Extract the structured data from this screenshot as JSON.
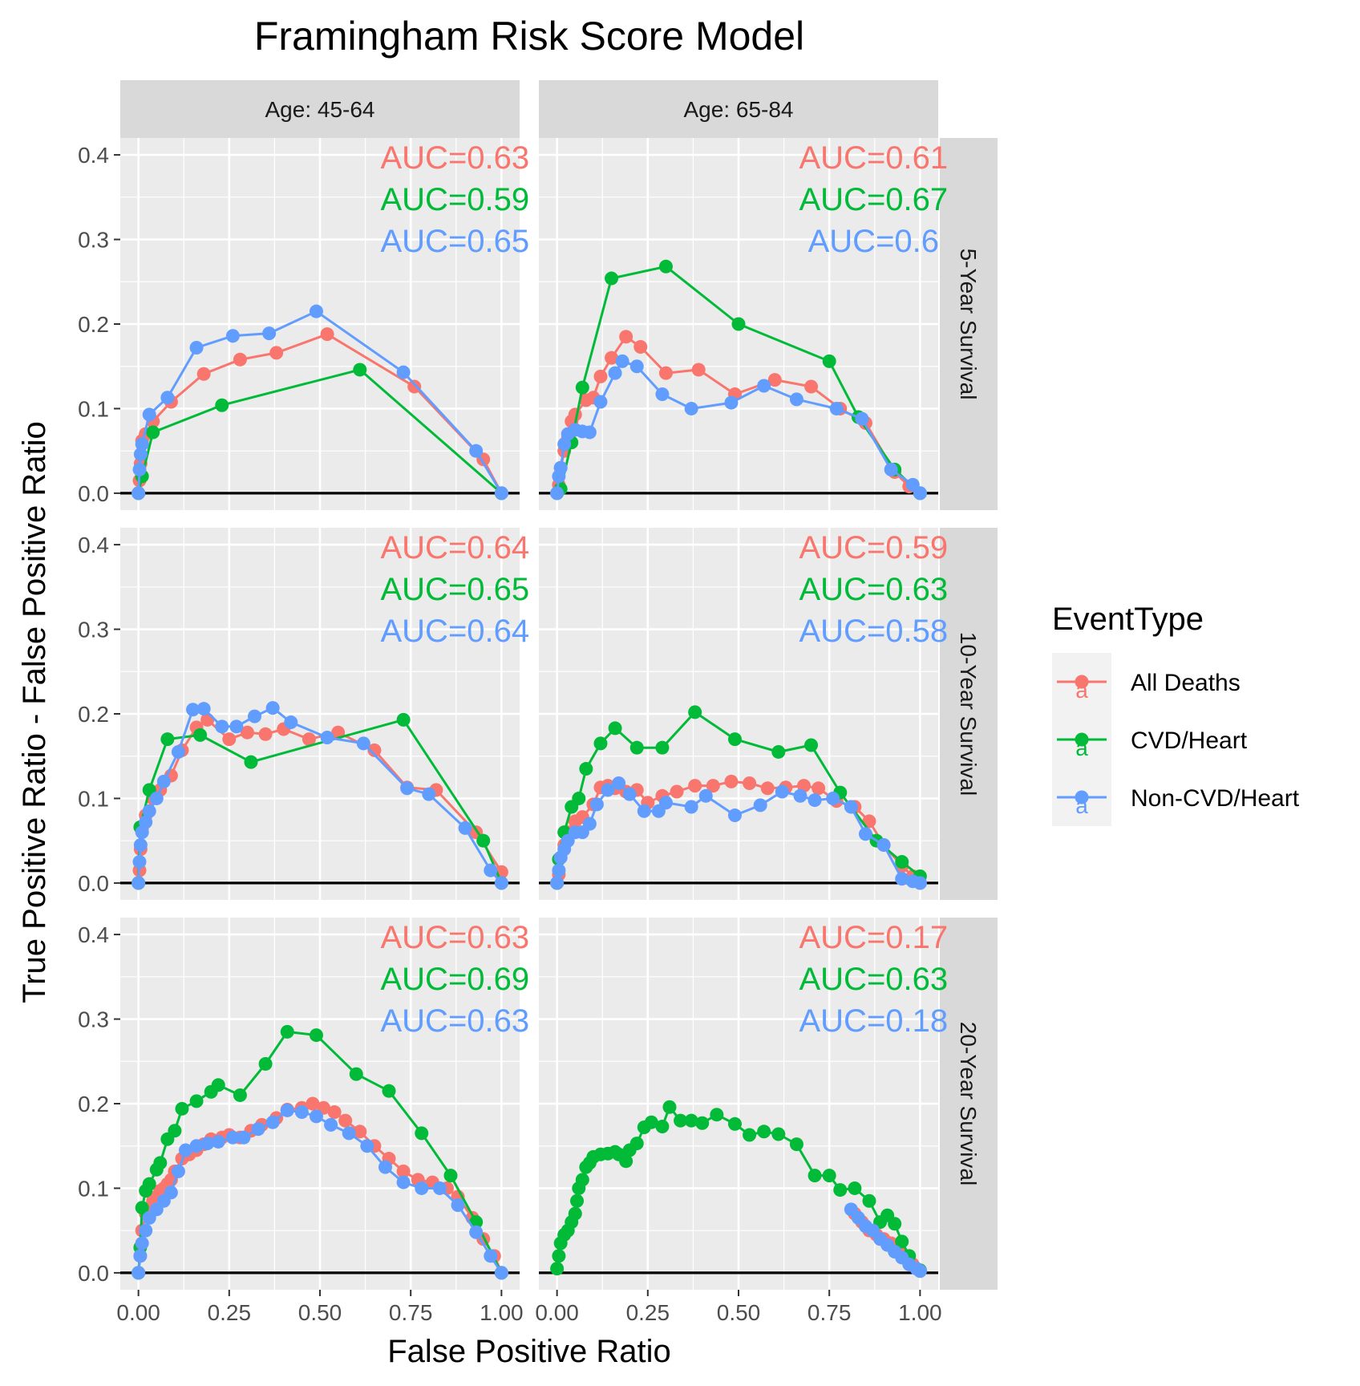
{
  "chart_data": {
    "type": "line",
    "title": "Framingham Risk Score Model",
    "xlabel": "False Positive Ratio",
    "ylabel": "True Positive Ratio - False Positive Ratio",
    "xlim": [
      -0.05,
      1.05
    ],
    "ylim": [
      -0.02,
      0.42
    ],
    "xticks": [
      "0.00",
      "0.25",
      "0.50",
      "0.75",
      "1.00"
    ],
    "xtick_values": [
      0,
      0.25,
      0.5,
      0.75,
      1.0
    ],
    "yticks": [
      "0.0",
      "0.1",
      "0.2",
      "0.3",
      "0.4"
    ],
    "ytick_values": [
      0,
      0.1,
      0.2,
      0.3,
      0.4
    ],
    "grid": true,
    "legend": {
      "title": "EventType",
      "placement": "right",
      "entries": [
        "All Deaths",
        "CVD/Heart",
        "Non-CVD/Heart"
      ],
      "glyph": "a"
    },
    "colors": {
      "All Deaths": "#F8766D",
      "CVD/Heart": "#00BA38",
      "Non-CVD/Heart": "#619CFF",
      "panel_bg": "#EBEBEB",
      "strip_bg": "#D9D9D9",
      "grid": "#FFFFFF",
      "zero_line": "#000000"
    },
    "col_strips": [
      "Age: 45-64",
      "Age: 65-84"
    ],
    "row_strips": [
      "5-Year Survival",
      "10-Year Survival",
      "20-Year Survival"
    ],
    "panels": [
      {
        "row": 0,
        "col": 0,
        "auc": [
          "AUC=0.63",
          "AUC=0.59",
          "AUC=0.65"
        ],
        "series": [
          {
            "name": "All Deaths",
            "x": [
              0,
              0.003,
              0.006,
              0.01,
              0.02,
              0.04,
              0.09,
              0.18,
              0.28,
              0.38,
              0.52,
              0.76,
              0.95,
              1.0
            ],
            "y": [
              0,
              0.015,
              0.035,
              0.062,
              0.07,
              0.085,
              0.108,
              0.141,
              0.158,
              0.166,
              0.188,
              0.126,
              0.04,
              0
            ]
          },
          {
            "name": "CVD/Heart",
            "x": [
              0,
              0.01,
              0.04,
              0.23,
              0.61,
              1.0
            ],
            "y": [
              0,
              0.02,
              0.072,
              0.104,
              0.146,
              0
            ]
          },
          {
            "name": "Non-CVD/Heart",
            "x": [
              0,
              0.003,
              0.006,
              0.01,
              0.03,
              0.08,
              0.16,
              0.26,
              0.36,
              0.49,
              0.73,
              0.93,
              1.0
            ],
            "y": [
              0,
              0.028,
              0.046,
              0.058,
              0.093,
              0.113,
              0.172,
              0.186,
              0.189,
              0.215,
              0.143,
              0.05,
              0
            ]
          }
        ]
      },
      {
        "row": 0,
        "col": 1,
        "auc": [
          "AUC=0.61",
          "AUC=0.67",
          "AUC=0.6"
        ],
        "series": [
          {
            "name": "All Deaths",
            "x": [
              0,
              0.005,
              0.01,
              0.02,
              0.03,
              0.04,
              0.05,
              0.08,
              0.1,
              0.12,
              0.15,
              0.19,
              0.23,
              0.3,
              0.39,
              0.49,
              0.6,
              0.7,
              0.78,
              0.85,
              0.93,
              0.97,
              1.0
            ],
            "y": [
              0,
              0.01,
              0.03,
              0.05,
              0.065,
              0.085,
              0.093,
              0.11,
              0.113,
              0.138,
              0.16,
              0.185,
              0.173,
              0.142,
              0.146,
              0.117,
              0.134,
              0.126,
              0.1,
              0.083,
              0.025,
              0.008,
              0
            ]
          },
          {
            "name": "CVD/Heart",
            "x": [
              0,
              0.01,
              0.04,
              0.07,
              0.15,
              0.3,
              0.5,
              0.75,
              0.83,
              0.93,
              1.0
            ],
            "y": [
              0,
              0.005,
              0.06,
              0.125,
              0.254,
              0.268,
              0.2,
              0.156,
              0.09,
              0.028,
              0
            ]
          },
          {
            "name": "Non-CVD/Heart",
            "x": [
              0,
              0.005,
              0.01,
              0.02,
              0.03,
              0.05,
              0.07,
              0.09,
              0.12,
              0.16,
              0.18,
              0.22,
              0.29,
              0.37,
              0.48,
              0.57,
              0.66,
              0.77,
              0.84,
              0.92,
              0.98,
              1.0
            ],
            "y": [
              0,
              0.02,
              0.03,
              0.058,
              0.07,
              0.075,
              0.073,
              0.072,
              0.108,
              0.142,
              0.156,
              0.15,
              0.117,
              0.1,
              0.107,
              0.127,
              0.111,
              0.1,
              0.088,
              0.028,
              0.01,
              0
            ]
          }
        ]
      },
      {
        "row": 1,
        "col": 0,
        "auc": [
          "AUC=0.64",
          "AUC=0.65",
          "AUC=0.64"
        ],
        "series": [
          {
            "name": "All Deaths",
            "x": [
              0,
              0.003,
              0.006,
              0.01,
              0.02,
              0.04,
              0.06,
              0.09,
              0.12,
              0.16,
              0.19,
              0.25,
              0.3,
              0.35,
              0.4,
              0.47,
              0.55,
              0.65,
              0.74,
              0.82,
              0.93,
              1.0
            ],
            "y": [
              0,
              0.015,
              0.04,
              0.065,
              0.08,
              0.1,
              0.11,
              0.127,
              0.157,
              0.184,
              0.193,
              0.17,
              0.178,
              0.176,
              0.182,
              0.17,
              0.178,
              0.157,
              0.113,
              0.11,
              0.06,
              0.013
            ]
          },
          {
            "name": "CVD/Heart",
            "x": [
              0,
              0.005,
              0.03,
              0.08,
              0.17,
              0.31,
              0.73,
              0.95,
              1.0
            ],
            "y": [
              0,
              0.066,
              0.11,
              0.17,
              0.175,
              0.143,
              0.193,
              0.05,
              0
            ]
          },
          {
            "name": "Non-CVD/Heart",
            "x": [
              0,
              0.003,
              0.006,
              0.01,
              0.02,
              0.03,
              0.05,
              0.07,
              0.11,
              0.15,
              0.18,
              0.23,
              0.27,
              0.32,
              0.37,
              0.42,
              0.52,
              0.62,
              0.74,
              0.8,
              0.9,
              0.97,
              1.0
            ],
            "y": [
              0,
              0.025,
              0.045,
              0.06,
              0.072,
              0.085,
              0.1,
              0.12,
              0.155,
              0.205,
              0.206,
              0.185,
              0.185,
              0.197,
              0.207,
              0.19,
              0.172,
              0.165,
              0.112,
              0.105,
              0.065,
              0.015,
              0
            ]
          }
        ]
      },
      {
        "row": 1,
        "col": 1,
        "auc": [
          "AUC=0.59",
          "AUC=0.63",
          "AUC=0.58"
        ],
        "series": [
          {
            "name": "All Deaths",
            "x": [
              0,
              0.005,
              0.01,
              0.02,
              0.03,
              0.05,
              0.07,
              0.1,
              0.12,
              0.14,
              0.16,
              0.19,
              0.22,
              0.25,
              0.29,
              0.33,
              0.38,
              0.43,
              0.48,
              0.53,
              0.58,
              0.63,
              0.68,
              0.72,
              0.77,
              0.82,
              0.86,
              0.9,
              0.95,
              0.98,
              1.0
            ],
            "y": [
              0,
              0.01,
              0.03,
              0.045,
              0.06,
              0.073,
              0.078,
              0.093,
              0.113,
              0.115,
              0.112,
              0.108,
              0.11,
              0.095,
              0.103,
              0.108,
              0.115,
              0.115,
              0.12,
              0.118,
              0.112,
              0.113,
              0.115,
              0.112,
              0.097,
              0.09,
              0.073,
              0.045,
              0.02,
              0.008,
              0
            ]
          },
          {
            "name": "CVD/Heart",
            "x": [
              0,
              0.005,
              0.02,
              0.04,
              0.06,
              0.08,
              0.12,
              0.16,
              0.22,
              0.29,
              0.38,
              0.49,
              0.61,
              0.7,
              0.78,
              0.88,
              0.95,
              1.0
            ],
            "y": [
              0,
              0.028,
              0.06,
              0.09,
              0.1,
              0.135,
              0.165,
              0.183,
              0.16,
              0.16,
              0.202,
              0.17,
              0.155,
              0.163,
              0.107,
              0.05,
              0.025,
              0.008
            ]
          },
          {
            "name": "Non-CVD/Heart",
            "x": [
              0,
              0.005,
              0.01,
              0.02,
              0.03,
              0.05,
              0.07,
              0.09,
              0.11,
              0.14,
              0.17,
              0.2,
              0.24,
              0.28,
              0.3,
              0.37,
              0.41,
              0.49,
              0.56,
              0.62,
              0.67,
              0.71,
              0.76,
              0.81,
              0.85,
              0.9,
              0.95,
              0.98,
              1.0
            ],
            "y": [
              0,
              0.015,
              0.03,
              0.04,
              0.05,
              0.06,
              0.06,
              0.07,
              0.093,
              0.11,
              0.118,
              0.105,
              0.085,
              0.085,
              0.095,
              0.09,
              0.103,
              0.08,
              0.092,
              0.108,
              0.103,
              0.098,
              0.1,
              0.09,
              0.058,
              0.045,
              0.005,
              0.002,
              0
            ]
          }
        ]
      },
      {
        "row": 2,
        "col": 0,
        "auc": [
          "AUC=0.63",
          "AUC=0.69",
          "AUC=0.63"
        ],
        "series": [
          {
            "name": "All Deaths",
            "x": [
              0,
              0.005,
              0.01,
              0.02,
              0.03,
              0.04,
              0.05,
              0.06,
              0.07,
              0.08,
              0.09,
              0.1,
              0.12,
              0.14,
              0.16,
              0.18,
              0.2,
              0.23,
              0.25,
              0.28,
              0.31,
              0.34,
              0.38,
              0.41,
              0.45,
              0.48,
              0.51,
              0.54,
              0.57,
              0.61,
              0.65,
              0.69,
              0.73,
              0.77,
              0.81,
              0.85,
              0.88,
              0.92,
              0.95,
              0.98,
              1.0
            ],
            "y": [
              0,
              0.02,
              0.05,
              0.07,
              0.075,
              0.085,
              0.09,
              0.097,
              0.1,
              0.105,
              0.11,
              0.12,
              0.135,
              0.14,
              0.145,
              0.152,
              0.158,
              0.16,
              0.163,
              0.16,
              0.168,
              0.175,
              0.183,
              0.193,
              0.195,
              0.2,
              0.195,
              0.19,
              0.18,
              0.167,
              0.15,
              0.135,
              0.12,
              0.11,
              0.107,
              0.1,
              0.09,
              0.065,
              0.04,
              0.02,
              0
            ]
          },
          {
            "name": "CVD/Heart",
            "x": [
              0,
              0.005,
              0.01,
              0.02,
              0.03,
              0.05,
              0.06,
              0.08,
              0.1,
              0.12,
              0.16,
              0.2,
              0.22,
              0.28,
              0.35,
              0.41,
              0.49,
              0.6,
              0.69,
              0.78,
              0.86,
              0.93,
              1.0
            ],
            "y": [
              0,
              0.03,
              0.077,
              0.097,
              0.105,
              0.122,
              0.13,
              0.158,
              0.168,
              0.194,
              0.203,
              0.214,
              0.222,
              0.21,
              0.247,
              0.285,
              0.281,
              0.235,
              0.215,
              0.165,
              0.115,
              0.06,
              0
            ]
          },
          {
            "name": "Non-CVD/Heart",
            "x": [
              0,
              0.005,
              0.01,
              0.02,
              0.03,
              0.05,
              0.07,
              0.09,
              0.11,
              0.13,
              0.16,
              0.19,
              0.22,
              0.26,
              0.29,
              0.33,
              0.37,
              0.41,
              0.45,
              0.49,
              0.53,
              0.58,
              0.63,
              0.68,
              0.73,
              0.78,
              0.83,
              0.88,
              0.93,
              0.97,
              1.0
            ],
            "y": [
              0,
              0.02,
              0.035,
              0.05,
              0.065,
              0.075,
              0.085,
              0.095,
              0.12,
              0.145,
              0.15,
              0.153,
              0.155,
              0.16,
              0.16,
              0.17,
              0.178,
              0.192,
              0.19,
              0.185,
              0.175,
              0.165,
              0.15,
              0.125,
              0.107,
              0.1,
              0.1,
              0.08,
              0.048,
              0.02,
              0
            ]
          }
        ]
      },
      {
        "row": 2,
        "col": 1,
        "auc": [
          "AUC=0.17",
          "AUC=0.63",
          "AUC=0.18"
        ],
        "series": [
          {
            "name": "All Deaths",
            "x": [
              0.82,
              0.84,
              0.86,
              0.88,
              0.9,
              0.92,
              0.94,
              0.96,
              0.98,
              1.0
            ],
            "y": [
              0.07,
              0.06,
              0.05,
              0.045,
              0.04,
              0.035,
              0.025,
              0.02,
              0.01,
              0.003
            ]
          },
          {
            "name": "CVD/Heart",
            "x": [
              0,
              0.005,
              0.01,
              0.02,
              0.03,
              0.04,
              0.05,
              0.055,
              0.06,
              0.07,
              0.08,
              0.09,
              0.1,
              0.12,
              0.14,
              0.16,
              0.17,
              0.19,
              0.2,
              0.22,
              0.24,
              0.26,
              0.29,
              0.31,
              0.34,
              0.37,
              0.4,
              0.44,
              0.49,
              0.53,
              0.57,
              0.61,
              0.66,
              0.71,
              0.75,
              0.78,
              0.82,
              0.86,
              0.89,
              0.91,
              0.93,
              0.95,
              0.97,
              1.0
            ],
            "y": [
              0.005,
              0.02,
              0.035,
              0.045,
              0.05,
              0.06,
              0.07,
              0.085,
              0.1,
              0.11,
              0.125,
              0.13,
              0.137,
              0.14,
              0.141,
              0.143,
              0.14,
              0.132,
              0.145,
              0.153,
              0.172,
              0.178,
              0.173,
              0.196,
              0.18,
              0.18,
              0.177,
              0.187,
              0.176,
              0.163,
              0.167,
              0.164,
              0.152,
              0.115,
              0.115,
              0.098,
              0.1,
              0.085,
              0.06,
              0.068,
              0.058,
              0.037,
              0.02,
              0.003
            ]
          },
          {
            "name": "Non-CVD/Heart",
            "x": [
              0.81,
              0.83,
              0.85,
              0.87,
              0.89,
              0.91,
              0.93,
              0.95,
              0.97,
              0.99,
              1.0
            ],
            "y": [
              0.075,
              0.065,
              0.055,
              0.05,
              0.04,
              0.033,
              0.025,
              0.018,
              0.01,
              0.005,
              0.002
            ]
          }
        ]
      }
    ]
  }
}
